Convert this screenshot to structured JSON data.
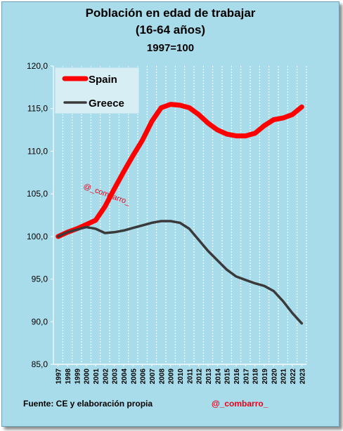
{
  "chart_data": {
    "type": "line",
    "title": "Población  en edad de trabajar",
    "subtitle": "(16-64 años)",
    "base_label": "1997=100",
    "x": [
      1997,
      1998,
      1999,
      2000,
      2001,
      2002,
      2003,
      2004,
      2005,
      2006,
      2007,
      2008,
      2009,
      2010,
      2011,
      2012,
      2013,
      2014,
      2015,
      2016,
      2017,
      2018,
      2019,
      2020,
      2021,
      2022,
      2023
    ],
    "series": [
      {
        "name": "Spain",
        "color": "#ff0000",
        "values": [
          100.0,
          100.5,
          100.9,
          101.4,
          101.9,
          103.5,
          105.6,
          107.6,
          109.5,
          111.3,
          113.5,
          115.1,
          115.5,
          115.4,
          115.1,
          114.3,
          113.3,
          112.5,
          112.0,
          111.8,
          111.8,
          112.1,
          113.0,
          113.7,
          113.9,
          114.3,
          115.2
        ]
      },
      {
        "name": "Greece",
        "color": "#3a3a3a",
        "values": [
          100.0,
          100.5,
          100.8,
          101.1,
          100.9,
          100.4,
          100.5,
          100.7,
          101.0,
          101.3,
          101.6,
          101.8,
          101.8,
          101.6,
          100.9,
          99.6,
          98.3,
          97.2,
          96.1,
          95.3,
          94.9,
          94.5,
          94.2,
          93.6,
          92.4,
          91.0,
          89.8
        ]
      }
    ],
    "ylim": [
      85,
      120
    ],
    "yticks": [
      "85,0",
      "90,0",
      "95,0",
      "100,0",
      "105,0",
      "110,0",
      "115,0",
      "120,0"
    ],
    "grid": "vertical",
    "legend": "top-left",
    "watermark": "@_combarro_"
  },
  "footer": {
    "source": "Fuente:  CE y elaboración propia",
    "handle": "@_combarro_"
  }
}
